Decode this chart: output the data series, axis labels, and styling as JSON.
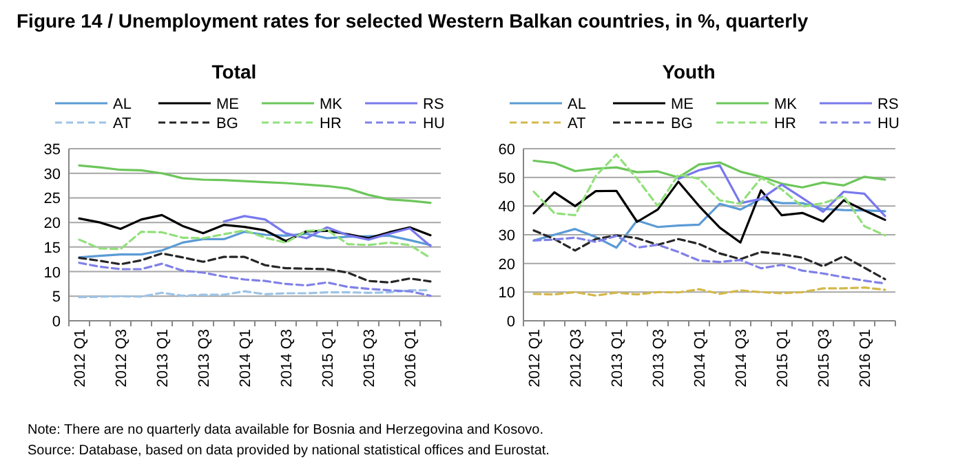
{
  "chart_data": [
    {
      "type": "line",
      "title": "Total",
      "annotations": [
        "Figure 14 / Unemployment rates for selected Western Balkan countries, in %, quarterly"
      ],
      "categories": [
        "2012 Q1",
        null,
        "2012 Q3",
        null,
        "2013 Q1",
        null,
        "2013 Q3",
        null,
        "2014 Q1",
        null,
        "2014 Q3",
        null,
        "2015 Q1",
        null,
        "2015 Q3",
        null,
        "2016 Q1",
        null
      ],
      "ylim": [
        0,
        35
      ],
      "yticks": [
        0,
        5,
        10,
        15,
        20,
        25,
        30,
        35
      ],
      "grid": "y",
      "legend": "top",
      "series": [
        {
          "name": "AL",
          "color": "#5b9bd5",
          "line_style": "solid",
          "values": [
            12.9,
            13.2,
            13.5,
            13.5,
            14.3,
            15.9,
            16.6,
            16.6,
            18.1,
            17.5,
            17.3,
            17.7,
            16.8,
            17.1,
            17.2,
            17.3,
            16.4,
            15.4
          ]
        },
        {
          "name": "ME",
          "color": "#000000",
          "line_style": "solid",
          "values": [
            20.8,
            20.0,
            18.7,
            20.6,
            21.5,
            19.3,
            17.8,
            19.5,
            19.1,
            18.4,
            16.2,
            18.2,
            18.3,
            17.6,
            16.8,
            18.0,
            19.0,
            17.4
          ]
        },
        {
          "name": "MK",
          "color": "#6cc65a",
          "line_style": "solid",
          "values": [
            31.6,
            31.2,
            30.7,
            30.6,
            30.0,
            29.0,
            28.7,
            28.6,
            28.4,
            28.2,
            28.0,
            27.7,
            27.4,
            26.9,
            25.6,
            24.7,
            24.4,
            24.0
          ]
        },
        {
          "name": "RS",
          "color": "#7878ee",
          "line_style": "solid",
          "values": [
            null,
            null,
            null,
            null,
            null,
            null,
            null,
            20.2,
            21.3,
            20.6,
            17.8,
            16.8,
            19.0,
            17.4,
            16.5,
            17.7,
            18.8,
            15.2
          ]
        },
        {
          "name": "AT",
          "color": "#9dc3e6",
          "line_style": "dashed",
          "values": [
            4.8,
            4.9,
            5.0,
            4.9,
            5.7,
            5.1,
            5.3,
            5.3,
            6.0,
            5.4,
            5.6,
            5.6,
            5.8,
            5.8,
            5.7,
            5.8,
            6.2,
            6.2
          ]
        },
        {
          "name": "BG",
          "color": "#262626",
          "line_style": "dashed",
          "values": [
            12.8,
            12.2,
            11.5,
            12.3,
            13.7,
            12.9,
            12.0,
            13.0,
            13.0,
            11.3,
            10.7,
            10.6,
            10.5,
            9.8,
            8.1,
            7.8,
            8.6,
            8.0
          ]
        },
        {
          "name": "HR",
          "color": "#92e07a",
          "line_style": "dashed",
          "values": [
            16.5,
            14.7,
            14.6,
            18.1,
            18.0,
            16.9,
            16.8,
            17.6,
            18.4,
            16.9,
            15.9,
            18.3,
            18.5,
            15.6,
            15.4,
            15.9,
            15.4,
            12.8
          ]
        },
        {
          "name": "HU",
          "color": "#8080e8",
          "line_style": "dashed",
          "values": [
            11.8,
            11.0,
            10.5,
            10.5,
            11.6,
            10.2,
            9.8,
            9.0,
            8.4,
            8.1,
            7.5,
            7.2,
            7.8,
            6.9,
            6.5,
            6.2,
            6.0,
            5.1
          ]
        }
      ]
    },
    {
      "type": "line",
      "title": "Youth",
      "annotations": [
        "Note: There are no quarterly data available for Bosnia and Herzegovina and Kosovo.",
        "Source: Database, based on data provided by national statistical offices and Eurostat."
      ],
      "categories": [
        "2012 Q1",
        null,
        "2012 Q3",
        null,
        "2013 Q1",
        null,
        "2013 Q3",
        null,
        "2014 Q1",
        null,
        "2014 Q3",
        null,
        "2015 Q1",
        null,
        "2015 Q3",
        null,
        "2016 Q1",
        null
      ],
      "ylim": [
        0,
        60
      ],
      "yticks": [
        0,
        10,
        20,
        30,
        40,
        50,
        60
      ],
      "grid": "y",
      "legend": "top",
      "series": [
        {
          "name": "AL",
          "color": "#5b9bd5",
          "line_style": "solid",
          "values": [
            28.0,
            30.0,
            32.0,
            29.2,
            25.5,
            35.0,
            32.7,
            33.2,
            33.5,
            40.8,
            38.8,
            42.5,
            41.0,
            41.0,
            39.0,
            38.6,
            38.5,
            38.2
          ]
        },
        {
          "name": "ME",
          "color": "#000000",
          "line_style": "solid",
          "values": [
            37.5,
            44.8,
            40.0,
            45.2,
            45.3,
            34.5,
            38.8,
            48.5,
            40.0,
            32.5,
            27.3,
            45.5,
            36.8,
            37.6,
            34.6,
            42.0,
            38.5,
            35.2
          ]
        },
        {
          "name": "MK",
          "color": "#6cc65a",
          "line_style": "solid",
          "values": [
            55.8,
            55.0,
            52.2,
            53.0,
            53.5,
            51.8,
            52.1,
            50.0,
            54.5,
            55.2,
            52.0,
            50.2,
            47.8,
            46.5,
            48.2,
            47.2,
            50.2,
            49.2
          ]
        },
        {
          "name": "RS",
          "color": "#7878ee",
          "line_style": "solid",
          "values": [
            null,
            null,
            null,
            null,
            null,
            null,
            null,
            49.5,
            52.5,
            54.2,
            41.0,
            42.5,
            47.5,
            42.8,
            38.0,
            45.0,
            44.3,
            36.5
          ]
        },
        {
          "name": "AT",
          "color": "#d4b84a",
          "line_style": "dashed",
          "values": [
            9.4,
            9.2,
            10.0,
            8.8,
            9.8,
            9.2,
            10.0,
            9.9,
            11.0,
            9.4,
            10.6,
            10.0,
            9.6,
            10.0,
            11.3,
            11.3,
            11.6,
            10.8
          ]
        },
        {
          "name": "BG",
          "color": "#262626",
          "line_style": "dashed",
          "values": [
            31.5,
            28.5,
            24.5,
            28.5,
            29.8,
            28.8,
            26.5,
            28.5,
            26.8,
            23.5,
            21.5,
            24.0,
            23.2,
            22.0,
            19.0,
            22.5,
            18.5,
            14.5
          ]
        },
        {
          "name": "HR",
          "color": "#92e07a",
          "line_style": "dashed",
          "values": [
            45.0,
            37.5,
            36.8,
            50.5,
            58.0,
            49.5,
            40.0,
            51.0,
            49.5,
            42.0,
            40.8,
            49.8,
            45.8,
            39.8,
            41.0,
            43.5,
            33.0,
            29.8
          ]
        },
        {
          "name": "HU",
          "color": "#8080e8",
          "line_style": "dashed",
          "values": [
            28.0,
            28.3,
            29.0,
            27.5,
            29.6,
            25.5,
            26.5,
            24.0,
            21.0,
            20.5,
            21.2,
            18.3,
            19.5,
            17.5,
            16.5,
            15.2,
            14.0,
            13.0
          ]
        }
      ]
    }
  ]
}
